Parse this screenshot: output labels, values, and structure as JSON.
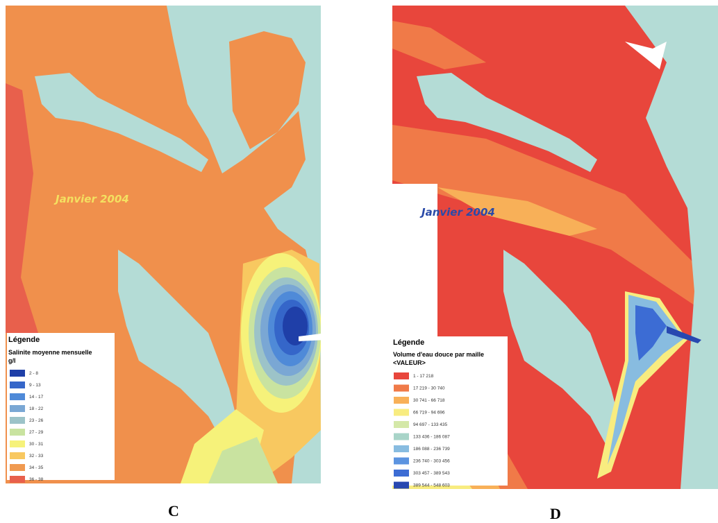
{
  "panels": [
    {
      "label": "C",
      "annotation": "Janvier 2004",
      "legend": {
        "title": "Légende",
        "subtitle": "Salinite moyenne mensuelle",
        "unit": "g/l",
        "items": [
          {
            "label": "2 - 8",
            "color": "#1f3fa8"
          },
          {
            "label": "9 - 13",
            "color": "#3566c9"
          },
          {
            "label": "14 - 17",
            "color": "#4f8ad8"
          },
          {
            "label": "18 - 22",
            "color": "#7aa7d4"
          },
          {
            "label": "23 - 26",
            "color": "#9cc3c8"
          },
          {
            "label": "27 - 29",
            "color": "#c9e3a0"
          },
          {
            "label": "30 - 31",
            "color": "#f6f27a"
          },
          {
            "label": "32 - 33",
            "color": "#f8c860"
          },
          {
            "label": "34 - 35",
            "color": "#f09a50"
          },
          {
            "label": "36 - 38",
            "color": "#e8604c"
          }
        ]
      }
    },
    {
      "label": "D",
      "annotation": "Janvier 2004",
      "legend": {
        "title": "Légende",
        "subtitle": "Volume d'eau douce par maille",
        "unit": "<VALEUR>",
        "items": [
          {
            "label": "1 - 17 218",
            "color": "#e8463c"
          },
          {
            "label": "17 219 - 30 740",
            "color": "#f07a48"
          },
          {
            "label": "30 741 - 66 718",
            "color": "#f8b058"
          },
          {
            "label": "66 719 - 94 696",
            "color": "#f8ec80"
          },
          {
            "label": "94 697 - 133 435",
            "color": "#d4e8a8"
          },
          {
            "label": "133 436 - 186 087",
            "color": "#a8d4c8"
          },
          {
            "label": "186 088 - 236 739",
            "color": "#88bce0"
          },
          {
            "label": "236 740 - 303 456",
            "color": "#5c94e0"
          },
          {
            "label": "303 457 - 389 543",
            "color": "#3c6cd4"
          },
          {
            "label": "389 544 - 548 603",
            "color": "#2848b0"
          }
        ]
      }
    }
  ]
}
